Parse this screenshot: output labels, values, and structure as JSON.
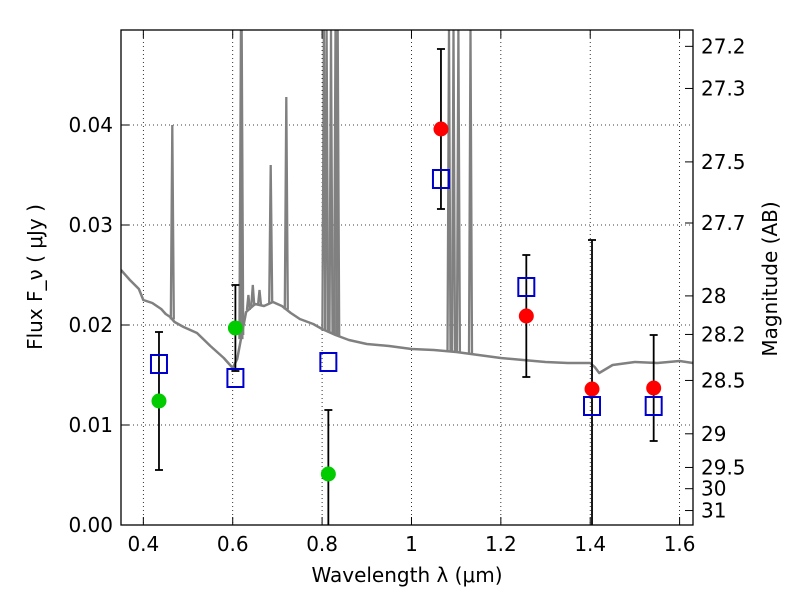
{
  "chart_data": {
    "type": "scatter",
    "title": "",
    "xlabel": "Wavelength  λ (μm)",
    "ylabel": "Flux  F_ν  ( μJy )",
    "ylabel_right": "Magnitude (AB)",
    "xlim": [
      0.35,
      1.63
    ],
    "ylim": [
      0.0,
      0.0495
    ],
    "grid": true,
    "x_ticks": [
      0.4,
      0.6,
      0.8,
      1.0,
      1.2,
      1.4,
      1.6
    ],
    "x_tick_labels": [
      "0.4",
      "0.6",
      "0.8",
      "1",
      "1.2",
      "1.4",
      "1.6"
    ],
    "y_ticks": [
      0.0,
      0.01,
      0.02,
      0.03,
      0.04
    ],
    "y_tick_labels": [
      "0.00",
      "0.01",
      "0.02",
      "0.03",
      "0.04"
    ],
    "right_ticks": [
      {
        "label": "27.2",
        "mag": 27.2
      },
      {
        "label": "27.3",
        "mag": 27.3
      },
      {
        "label": "27.5",
        "mag": 27.5
      },
      {
        "label": "27.7",
        "mag": 27.7
      },
      {
        "label": "28",
        "mag": 28.0
      },
      {
        "label": "28.2",
        "mag": 28.2
      },
      {
        "label": "28.5",
        "mag": 28.5
      },
      {
        "label": "29",
        "mag": 29.0
      },
      {
        "label": "29.5",
        "mag": 29.5
      },
      {
        "label": "30",
        "mag": 30.0
      },
      {
        "label": "31",
        "mag": 31.0
      }
    ],
    "series": [
      {
        "marker": "circle",
        "color": "#00cc00",
        "points": [
          {
            "x": 0.435,
            "y": 0.0124,
            "err": 0.0069
          },
          {
            "x": 0.606,
            "y": 0.0197,
            "err": 0.0043
          },
          {
            "x": 0.814,
            "y": 0.0051,
            "err": 0.0064
          }
        ]
      },
      {
        "marker": "circle",
        "color": "#ff0000",
        "points": [
          {
            "x": 1.066,
            "y": 0.0396,
            "err": 0.008
          },
          {
            "x": 1.257,
            "y": 0.0209,
            "err": 0.0061
          },
          {
            "x": 1.404,
            "y": 0.0136,
            "err": 0.0149
          },
          {
            "x": 1.542,
            "y": 0.0137,
            "err": 0.0053
          }
        ]
      },
      {
        "marker": "open-square",
        "color": "#0000cc",
        "points": [
          {
            "x": 0.435,
            "y": 0.0161
          },
          {
            "x": 0.606,
            "y": 0.0147
          },
          {
            "x": 0.814,
            "y": 0.0163
          },
          {
            "x": 1.066,
            "y": 0.0346
          },
          {
            "x": 1.257,
            "y": 0.0238
          },
          {
            "x": 1.404,
            "y": 0.0119
          },
          {
            "x": 1.542,
            "y": 0.0119
          }
        ]
      },
      {
        "type": "line",
        "color": "#808080",
        "x": [
          0.35,
          0.37,
          0.39,
          0.4,
          0.42,
          0.44,
          0.45,
          0.46,
          0.47,
          0.49,
          0.52,
          0.55,
          0.58,
          0.6,
          0.61,
          0.62,
          0.63,
          0.65,
          0.67,
          0.69,
          0.71,
          0.73,
          0.75,
          0.78,
          0.8,
          0.83,
          0.86,
          0.9,
          0.95,
          1.0,
          1.05,
          1.1,
          1.15,
          1.2,
          1.25,
          1.3,
          1.35,
          1.4,
          1.41,
          1.42,
          1.45,
          1.5,
          1.55,
          1.6,
          1.63
        ],
        "y": [
          0.0255,
          0.0245,
          0.0236,
          0.0225,
          0.0222,
          0.0216,
          0.0211,
          0.0208,
          0.0203,
          0.0198,
          0.0192,
          0.0179,
          0.0167,
          0.0157,
          0.0166,
          0.019,
          0.0213,
          0.0221,
          0.0219,
          0.0223,
          0.0219,
          0.0212,
          0.0206,
          0.0201,
          0.0196,
          0.019,
          0.0185,
          0.0181,
          0.0179,
          0.0176,
          0.0175,
          0.0173,
          0.017,
          0.0167,
          0.0165,
          0.0163,
          0.0162,
          0.0162,
          0.0158,
          0.0152,
          0.016,
          0.0163,
          0.0162,
          0.0164,
          0.0162
        ]
      },
      {
        "type": "emission-lines",
        "color": "#808080",
        "lines": [
          {
            "x": 0.4648,
            "peak": 0.04
          },
          {
            "x": 0.6183,
            "peak": 0.0495
          },
          {
            "x": 0.62,
            "peak": 0.0495
          },
          {
            "x": 0.635,
            "peak": 0.023
          },
          {
            "x": 0.645,
            "peak": 0.024
          },
          {
            "x": 0.66,
            "peak": 0.0235
          },
          {
            "x": 0.685,
            "peak": 0.036
          },
          {
            "x": 0.72,
            "peak": 0.0428
          },
          {
            "x": 0.804,
            "peak": 0.0495
          },
          {
            "x": 0.81,
            "peak": 0.0495
          },
          {
            "x": 0.82,
            "peak": 0.0495
          },
          {
            "x": 0.83,
            "peak": 0.0495
          },
          {
            "x": 0.835,
            "peak": 0.0495
          },
          {
            "x": 1.084,
            "peak": 0.0495
          },
          {
            "x": 1.094,
            "peak": 0.0495
          },
          {
            "x": 1.105,
            "peak": 0.0495
          },
          {
            "x": 1.132,
            "peak": 0.0495
          }
        ]
      }
    ]
  }
}
